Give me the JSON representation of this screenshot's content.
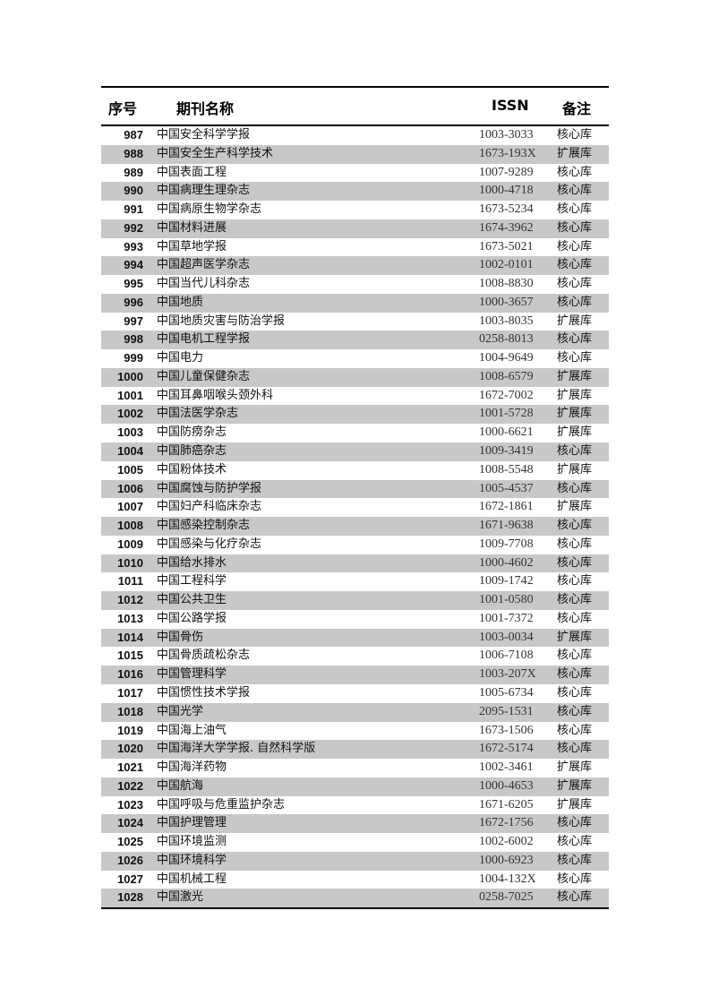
{
  "header": {
    "no": "序号",
    "name": "期刊名称",
    "issn": "ISSN",
    "note": "备注"
  },
  "rows": [
    [
      "987",
      "中国安全科学学报",
      "1003-3033",
      "核心库"
    ],
    [
      "988",
      "中国安全生产科学技术",
      "1673-193X",
      "扩展库"
    ],
    [
      "989",
      "中国表面工程",
      "1007-9289",
      "核心库"
    ],
    [
      "990",
      "中国病理生理杂志",
      "1000-4718",
      "核心库"
    ],
    [
      "991",
      "中国病原生物学杂志",
      "1673-5234",
      "核心库"
    ],
    [
      "992",
      "中国材料进展",
      "1674-3962",
      "核心库"
    ],
    [
      "993",
      "中国草地学报",
      "1673-5021",
      "核心库"
    ],
    [
      "994",
      "中国超声医学杂志",
      "1002-0101",
      "核心库"
    ],
    [
      "995",
      "中国当代儿科杂志",
      "1008-8830",
      "核心库"
    ],
    [
      "996",
      "中国地质",
      "1000-3657",
      "核心库"
    ],
    [
      "997",
      "中国地质灾害与防治学报",
      "1003-8035",
      "扩展库"
    ],
    [
      "998",
      "中国电机工程学报",
      "0258-8013",
      "核心库"
    ],
    [
      "999",
      "中国电力",
      "1004-9649",
      "核心库"
    ],
    [
      "1000",
      "中国儿童保健杂志",
      "1008-6579",
      "扩展库"
    ],
    [
      "1001",
      "中国耳鼻咽喉头颈外科",
      "1672-7002",
      "扩展库"
    ],
    [
      "1002",
      "中国法医学杂志",
      "1001-5728",
      "扩展库"
    ],
    [
      "1003",
      "中国防痨杂志",
      "1000-6621",
      "扩展库"
    ],
    [
      "1004",
      "中国肺癌杂志",
      "1009-3419",
      "核心库"
    ],
    [
      "1005",
      "中国粉体技术",
      "1008-5548",
      "扩展库"
    ],
    [
      "1006",
      "中国腐蚀与防护学报",
      "1005-4537",
      "核心库"
    ],
    [
      "1007",
      "中国妇产科临床杂志",
      "1672-1861",
      "扩展库"
    ],
    [
      "1008",
      "中国感染控制杂志",
      "1671-9638",
      "核心库"
    ],
    [
      "1009",
      "中国感染与化疗杂志",
      "1009-7708",
      "核心库"
    ],
    [
      "1010",
      "中国给水排水",
      "1000-4602",
      "核心库"
    ],
    [
      "1011",
      "中国工程科学",
      "1009-1742",
      "核心库"
    ],
    [
      "1012",
      "中国公共卫生",
      "1001-0580",
      "核心库"
    ],
    [
      "1013",
      "中国公路学报",
      "1001-7372",
      "核心库"
    ],
    [
      "1014",
      "中国骨伤",
      "1003-0034",
      "扩展库"
    ],
    [
      "1015",
      "中国骨质疏松杂志",
      "1006-7108",
      "核心库"
    ],
    [
      "1016",
      "中国管理科学",
      "1003-207X",
      "核心库"
    ],
    [
      "1017",
      "中国惯性技术学报",
      "1005-6734",
      "核心库"
    ],
    [
      "1018",
      "中国光学",
      "2095-1531",
      "核心库"
    ],
    [
      "1019",
      "中国海上油气",
      "1673-1506",
      "核心库"
    ],
    [
      "1020",
      "中国海洋大学学报. 自然科学版",
      "1672-5174",
      "核心库"
    ],
    [
      "1021",
      "中国海洋药物",
      "1002-3461",
      "扩展库"
    ],
    [
      "1022",
      "中国航海",
      "1000-4653",
      "扩展库"
    ],
    [
      "1023",
      "中国呼吸与危重监护杂志",
      "1671-6205",
      "扩展库"
    ],
    [
      "1024",
      "中国护理管理",
      "1672-1756",
      "核心库"
    ],
    [
      "1025",
      "中国环境监测",
      "1002-6002",
      "核心库"
    ],
    [
      "1026",
      "中国环境科学",
      "1000-6923",
      "核心库"
    ],
    [
      "1027",
      "中国机械工程",
      "1004-132X",
      "核心库"
    ],
    [
      "1028",
      "中国激光",
      "0258-7025",
      "核心库"
    ]
  ]
}
